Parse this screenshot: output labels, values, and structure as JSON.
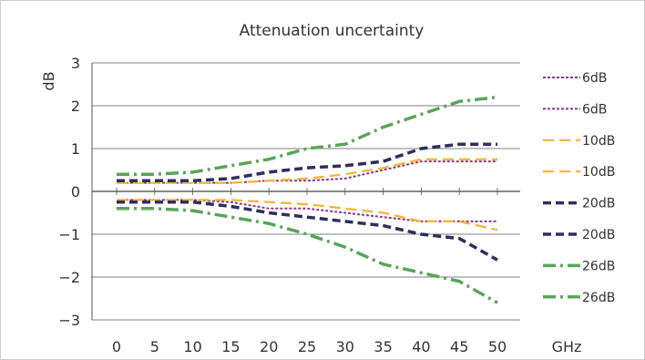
{
  "chart_data": {
    "type": "line",
    "title": "Attenuation uncertainty",
    "ylabel": "dB",
    "xlabel": "GHz",
    "x": [
      0,
      5,
      10,
      15,
      20,
      25,
      30,
      35,
      40,
      45,
      50
    ],
    "xlim": [
      0,
      50
    ],
    "ylim": [
      -3,
      3
    ],
    "yticks": [
      "3",
      "2",
      "1",
      "0",
      "−1",
      "−2",
      "−3"
    ],
    "xticks": [
      "0",
      "5",
      "10",
      "15",
      "20",
      "25",
      "30",
      "35",
      "40",
      "45",
      "50"
    ],
    "grid": "horizontal",
    "legend_position": "right",
    "series": [
      {
        "name": "6dB",
        "color": "#8b3a8b",
        "dash": "short",
        "values": [
          0.2,
          0.2,
          0.2,
          0.2,
          0.25,
          0.25,
          0.3,
          0.5,
          0.7,
          0.7,
          0.7
        ]
      },
      {
        "name": "6dB",
        "color": "#8b3a8b",
        "dash": "short",
        "values": [
          -0.2,
          -0.2,
          -0.2,
          -0.25,
          -0.4,
          -0.4,
          -0.5,
          -0.6,
          -0.7,
          -0.7,
          -0.7
        ]
      },
      {
        "name": "10dB",
        "color": "#f5b335",
        "dash": "long",
        "values": [
          0.2,
          0.2,
          0.2,
          0.2,
          0.25,
          0.3,
          0.4,
          0.55,
          0.75,
          0.75,
          0.75
        ]
      },
      {
        "name": "10dB",
        "color": "#f5b335",
        "dash": "long",
        "values": [
          -0.2,
          -0.2,
          -0.2,
          -0.2,
          -0.25,
          -0.3,
          -0.4,
          -0.5,
          -0.7,
          -0.7,
          -0.9
        ]
      },
      {
        "name": "20dB",
        "color": "#2e2e5e",
        "dash": "dashed",
        "values": [
          0.25,
          0.25,
          0.25,
          0.3,
          0.45,
          0.55,
          0.6,
          0.7,
          1.0,
          1.1,
          1.1
        ]
      },
      {
        "name": "20dB",
        "color": "#2e2e5e",
        "dash": "dashed",
        "values": [
          -0.25,
          -0.25,
          -0.25,
          -0.35,
          -0.5,
          -0.6,
          -0.7,
          -0.8,
          -1.0,
          -1.1,
          -1.6
        ]
      },
      {
        "name": "26dB",
        "color": "#5aa55a",
        "dash": "dashdot",
        "values": [
          0.4,
          0.4,
          0.45,
          0.6,
          0.75,
          1.0,
          1.1,
          1.5,
          1.8,
          2.1,
          2.2
        ]
      },
      {
        "name": "26dB",
        "color": "#5aa55a",
        "dash": "dashdot",
        "values": [
          -0.4,
          -0.4,
          -0.45,
          -0.6,
          -0.75,
          -1.0,
          -1.3,
          -1.7,
          -1.9,
          -2.1,
          -2.6
        ]
      }
    ]
  }
}
